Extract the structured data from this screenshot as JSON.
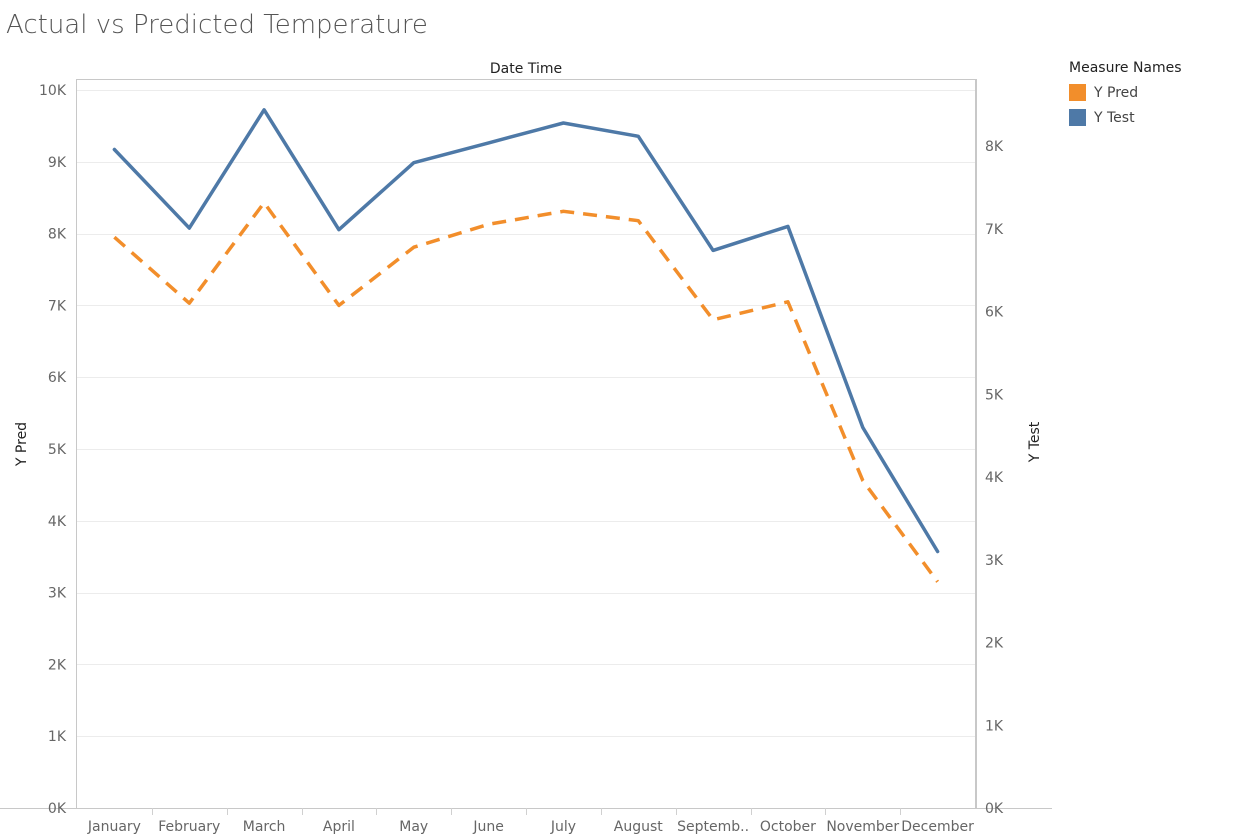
{
  "chart_data": {
    "type": "line",
    "title": "Actual vs Predicted Temperature",
    "xlabel": "Date Time",
    "ylabel_left": "Y Pred",
    "ylabel_right": "Y Test",
    "categories": [
      "January",
      "February",
      "March",
      "April",
      "May",
      "June",
      "July",
      "August",
      "Septemb..",
      "October",
      "November",
      "December"
    ],
    "ylim_left": [
      0,
      10000
    ],
    "ylim_right": [
      0,
      8800
    ],
    "yticks_left": [
      {
        "value": 0,
        "label": "0K"
      },
      {
        "value": 1000,
        "label": "1K"
      },
      {
        "value": 2000,
        "label": "2K"
      },
      {
        "value": 3000,
        "label": "3K"
      },
      {
        "value": 4000,
        "label": "4K"
      },
      {
        "value": 5000,
        "label": "5K"
      },
      {
        "value": 6000,
        "label": "6K"
      },
      {
        "value": 7000,
        "label": "7K"
      },
      {
        "value": 8000,
        "label": "8K"
      },
      {
        "value": 9000,
        "label": "9K"
      },
      {
        "value": 10000,
        "label": "10K"
      }
    ],
    "yticks_right": [
      {
        "value": 0,
        "label": "0K"
      },
      {
        "value": 1000,
        "label": "1K"
      },
      {
        "value": 2000,
        "label": "2K"
      },
      {
        "value": 3000,
        "label": "3K"
      },
      {
        "value": 4000,
        "label": "4K"
      },
      {
        "value": 5000,
        "label": "5K"
      },
      {
        "value": 6000,
        "label": "6K"
      },
      {
        "value": 7000,
        "label": "7K"
      },
      {
        "value": 8000,
        "label": "8K"
      }
    ],
    "grid": true,
    "legend_title": "Measure Names",
    "legend_position": "top-right",
    "series": [
      {
        "name": "Y Pred",
        "axis": "left",
        "style": "dashed",
        "color": "#f28e2b",
        "values": [
          7950,
          7030,
          8430,
          7000,
          7810,
          8130,
          8310,
          8180,
          6800,
          7050,
          4560,
          3150
        ]
      },
      {
        "name": "Y Test",
        "axis": "right",
        "style": "solid",
        "color": "#4e79a7",
        "values": [
          7960,
          7010,
          8440,
          6990,
          7800,
          8040,
          8280,
          8120,
          6740,
          7030,
          4600,
          3100
        ]
      }
    ]
  }
}
